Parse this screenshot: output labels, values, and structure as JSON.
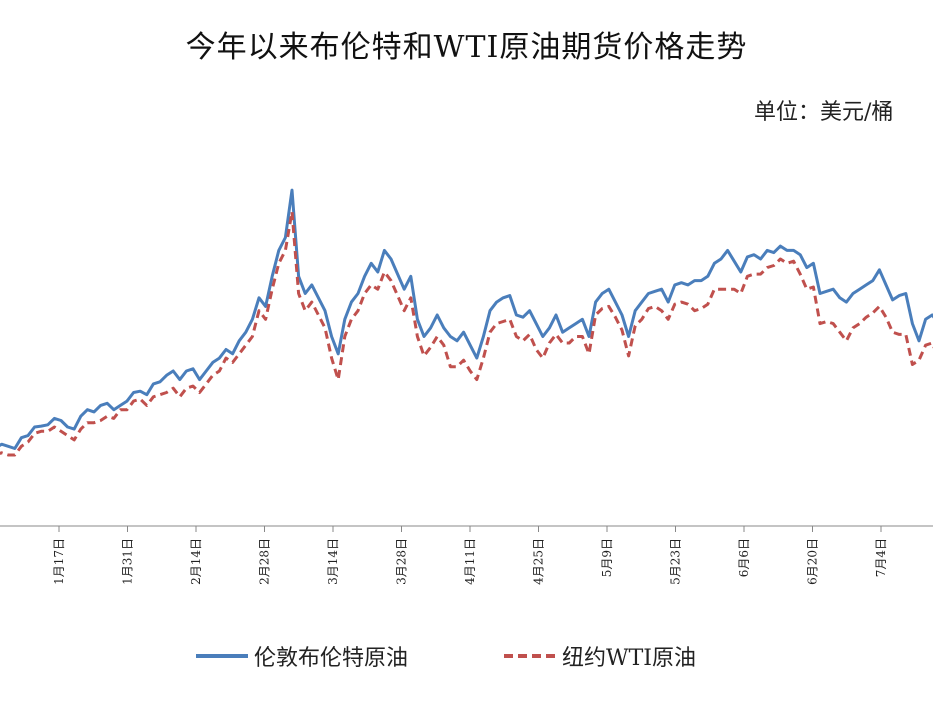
{
  "chart_data": {
    "type": "line",
    "title": "今年以来布伦特和WTI原油期货价格走势",
    "unit": "单位：美元/桶",
    "x_tick_labels": [
      "1月17日",
      "1月31日",
      "2月14日",
      "2月28日",
      "3月14日",
      "3月28日",
      "4月11日",
      "4月25日",
      "5月9日",
      "5月23日",
      "6月6日",
      "6月20日",
      "7月4日"
    ],
    "series": [
      {
        "name": "伦敦布伦特原油",
        "color": "#4a7ebb",
        "dash": "solid",
        "values": [
          78.0,
          79.0,
          78.5,
          78.0,
          80.5,
          81.0,
          83.0,
          83.2,
          83.5,
          85.0,
          84.5,
          83.0,
          82.5,
          85.5,
          87.0,
          86.5,
          88.0,
          88.5,
          87.0,
          88.0,
          89.0,
          91.0,
          91.3,
          90.5,
          93.0,
          93.5,
          95.0,
          96.0,
          94.0,
          96.0,
          96.5,
          94.0,
          96.0,
          98.0,
          99.0,
          101.0,
          100.0,
          103.0,
          105.0,
          108.0,
          113.0,
          111.0,
          118.0,
          124.0,
          127.0,
          138.0,
          118.0,
          114.0,
          116.0,
          113.0,
          110.0,
          104.0,
          100.0,
          108.0,
          112.0,
          114.0,
          118.0,
          121.0,
          119.0,
          124.0,
          122.0,
          118.5,
          115.0,
          118.0,
          108.0,
          104.0,
          106.0,
          109.0,
          106.0,
          104.0,
          103.0,
          105.0,
          102.0,
          99.0,
          104.0,
          110.0,
          112.0,
          113.0,
          113.5,
          109.0,
          108.5,
          110.0,
          107.0,
          104.0,
          106.0,
          109.0,
          105.0,
          106.0,
          107.0,
          108.0,
          104.0,
          112.0,
          114.0,
          115.0,
          112.0,
          109.0,
          104.0,
          110.0,
          112.0,
          114.0,
          114.5,
          115.0,
          112.0,
          116.0,
          116.5,
          116.0,
          117.0,
          117.0,
          118.0,
          121.0,
          122.0,
          124.0,
          121.5,
          119.0,
          122.5,
          123.0,
          122.0,
          124.0,
          123.5,
          125.0,
          124.0,
          124.0,
          123.0,
          120.0,
          121.0,
          114.0,
          114.5,
          115.0,
          113.0,
          112.0,
          114.0,
          115.0,
          116.0,
          117.0,
          119.5,
          116.0,
          112.5,
          113.5,
          114.0,
          107.0,
          103.0,
          108.0,
          109.0,
          107.0,
          101.0,
          100.5,
          104.0
        ]
      },
      {
        "name": "纽约WTI原油",
        "color": "#c0504d",
        "dash": "dashed",
        "values": [
          76.5,
          77.0,
          76.5,
          76.5,
          78.5,
          79.5,
          81.5,
          82.0,
          82.0,
          83.0,
          82.0,
          81.0,
          80.0,
          82.5,
          84.0,
          84.0,
          84.5,
          85.5,
          85.0,
          87.0,
          87.0,
          89.0,
          89.5,
          88.0,
          90.0,
          90.5,
          91.0,
          92.0,
          90.0,
          92.0,
          92.5,
          91.0,
          93.0,
          95.0,
          96.0,
          99.0,
          98.0,
          100.0,
          102.0,
          104.0,
          110.0,
          108.0,
          115.0,
          121.0,
          124.0,
          133.0,
          114.0,
          110.0,
          112.0,
          109.0,
          106.0,
          99.0,
          94.0,
          104.0,
          108.0,
          110.0,
          114.0,
          116.0,
          115.0,
          119.0,
          117.0,
          113.5,
          110.0,
          113.0,
          104.0,
          99.5,
          101.5,
          104.0,
          102.0,
          97.0,
          97.0,
          98.5,
          96.0,
          94.0,
          99.0,
          105.0,
          107.0,
          107.5,
          108.0,
          104.0,
          103.0,
          104.5,
          101.0,
          99.0,
          102.5,
          104.5,
          102.5,
          102.5,
          104.0,
          104.0,
          100.0,
          109.0,
          110.5,
          111.0,
          108.5,
          105.5,
          99.5,
          106.5,
          108.0,
          110.5,
          111.0,
          110.0,
          108.0,
          111.5,
          112.0,
          111.5,
          110.0,
          110.5,
          111.5,
          115.0,
          115.0,
          115.0,
          115.0,
          114.0,
          118.0,
          118.5,
          118.5,
          120.0,
          120.5,
          122.0,
          121.0,
          121.5,
          118.5,
          115.0,
          115.5,
          107.0,
          107.5,
          107.0,
          105.0,
          103.0,
          106.0,
          107.0,
          108.5,
          109.5,
          111.0,
          108.5,
          105.0,
          104.5,
          104.5,
          97.5,
          98.5,
          102.0,
          102.5,
          99.0,
          96.0,
          96.5,
          98.0
        ]
      }
    ],
    "ylim": [
      60,
      145
    ],
    "grid": false,
    "legend_position": "bottom"
  },
  "legend": {
    "brent_label": "伦敦布伦特原油",
    "wti_label": "纽约WTI原油"
  }
}
